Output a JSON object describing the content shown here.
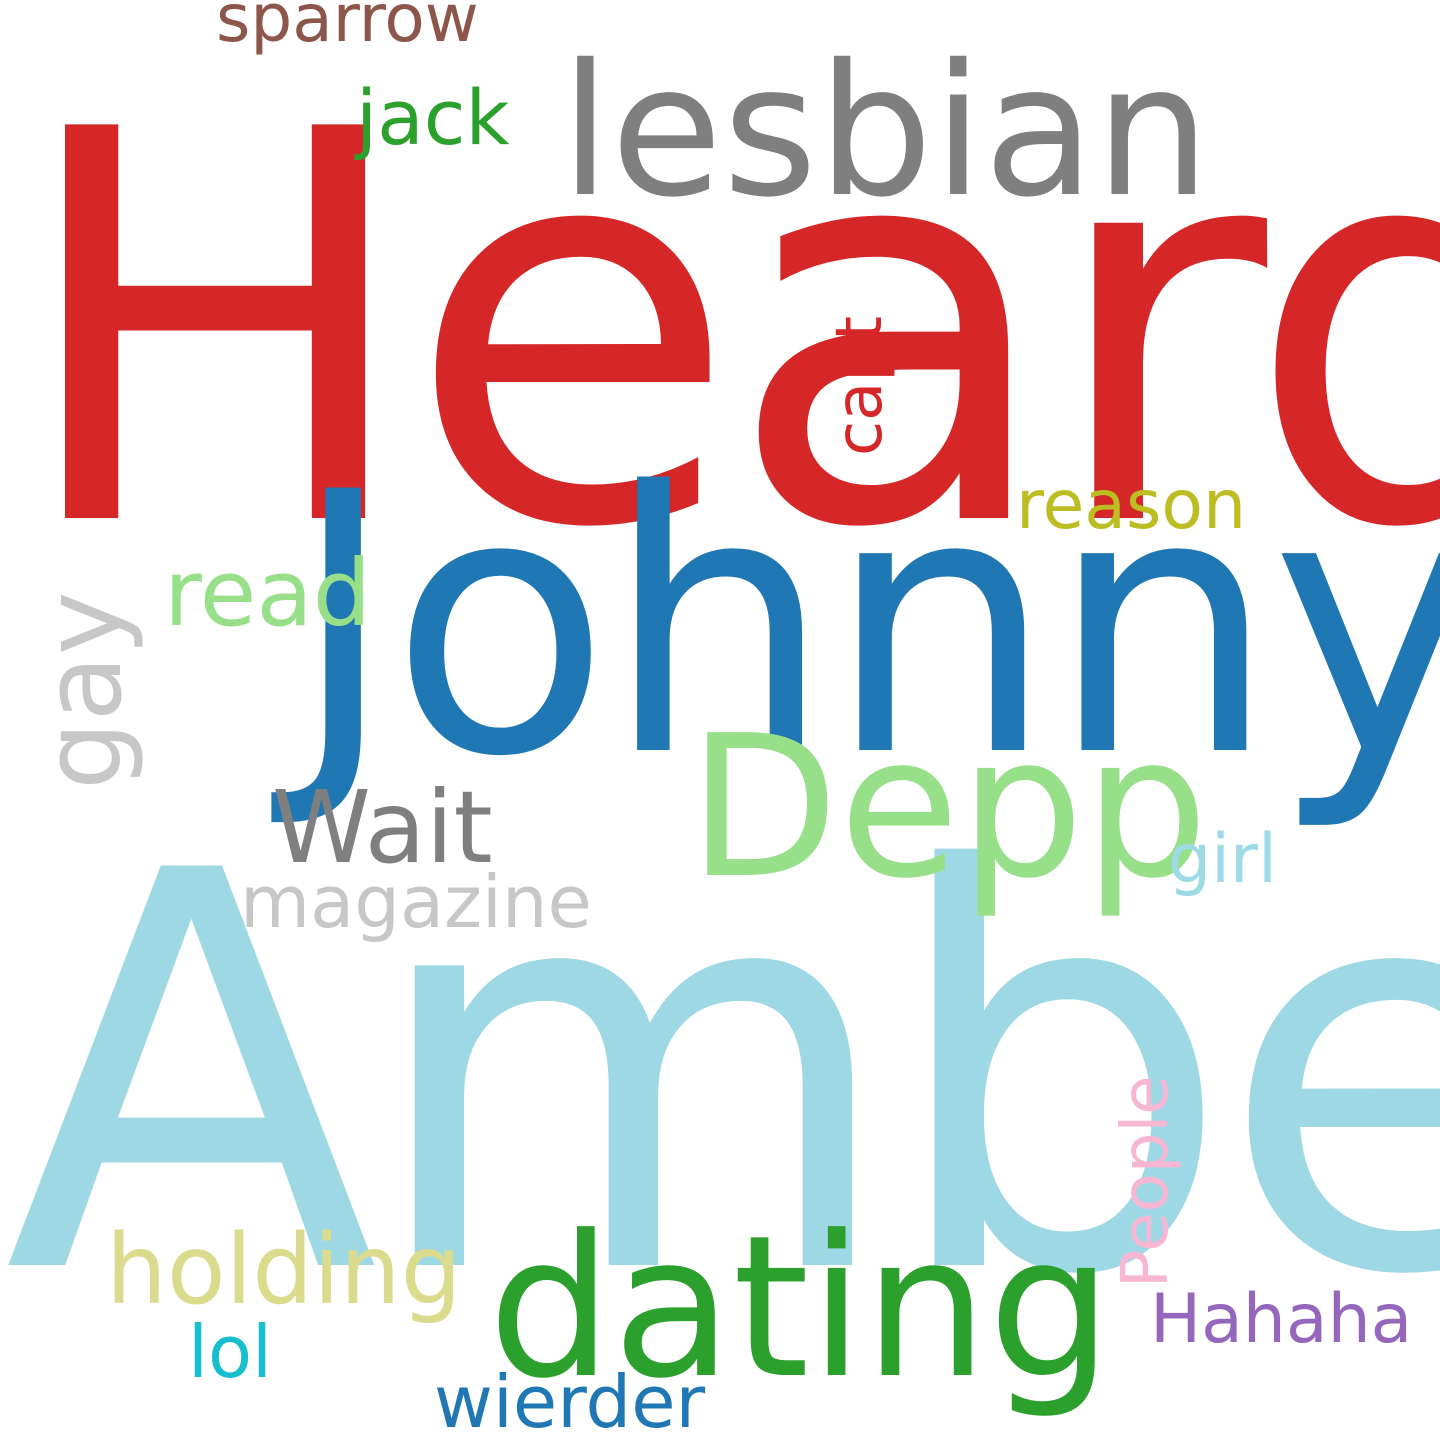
{
  "words": [
    {
      "id": "heard",
      "text": "Heard",
      "color": "#d62728"
    },
    {
      "id": "amber",
      "text": "Amber",
      "color": "#9fd8e5"
    },
    {
      "id": "johnny",
      "text": "Johnny",
      "color": "#1f77b4"
    },
    {
      "id": "lesbian",
      "text": "lesbian",
      "color": "#7f7f7f"
    },
    {
      "id": "dating",
      "text": "dating",
      "color": "#2ca02c"
    },
    {
      "id": "depp",
      "text": "Depp",
      "color": "#98df8a"
    },
    {
      "id": "sparrow",
      "text": "sparrow",
      "color": "#8c564b"
    },
    {
      "id": "jack",
      "text": "jack",
      "color": "#2ca02c"
    },
    {
      "id": "capt",
      "text": "capt",
      "color": "#d62728"
    },
    {
      "id": "reason",
      "text": "reason",
      "color": "#bcbd22"
    },
    {
      "id": "read",
      "text": "read",
      "color": "#98df8a"
    },
    {
      "id": "gay",
      "text": "gay",
      "color": "#c7c7c7"
    },
    {
      "id": "wait",
      "text": "Wait",
      "color": "#7f7f7f"
    },
    {
      "id": "magazine",
      "text": "magazine",
      "color": "#c7c7c7"
    },
    {
      "id": "girl",
      "text": "girl",
      "color": "#9edae5"
    },
    {
      "id": "people",
      "text": "People",
      "color": "#f7b6d2"
    },
    {
      "id": "holding",
      "text": "holding",
      "color": "#dbdb8d"
    },
    {
      "id": "hahaha",
      "text": "Hahaha",
      "color": "#9467bd"
    },
    {
      "id": "lol",
      "text": "lol",
      "color": "#17becf"
    },
    {
      "id": "wierder",
      "text": "wierder",
      "color": "#1f77b4"
    }
  ]
}
